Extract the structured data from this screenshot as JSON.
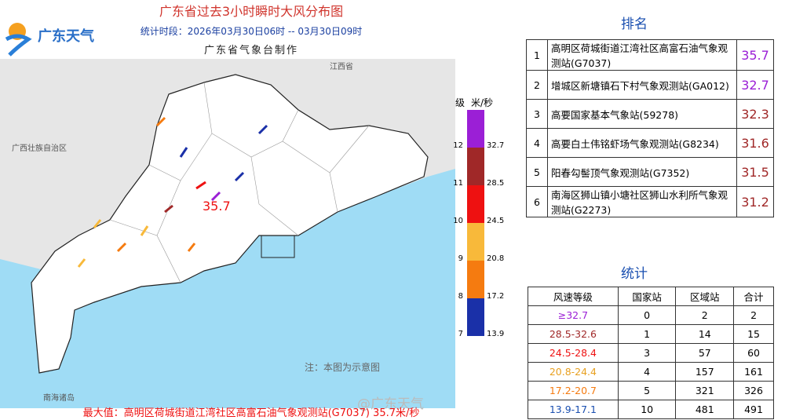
{
  "header": {
    "logo": "广东天气",
    "title": "广东省过去3小时瞬时大风分布图",
    "period": "统计时段：2026年03月30日06时 -- 03月30日09时",
    "maker": "广东省气象台制作"
  },
  "map": {
    "labels": [
      "江西省",
      "广西壮族自治区",
      "南海诸岛"
    ],
    "max_marker": "35.7",
    "note": "注：本图为示意图",
    "watermark": "@广东天气",
    "legend": {
      "level_header": "级",
      "unit_header": "米/秒",
      "levels": [
        {
          "level": "12",
          "speed": "32.7",
          "color": "#9b1fd6"
        },
        {
          "level": "11",
          "speed": "28.5",
          "color": "#a02828"
        },
        {
          "level": "10",
          "speed": "24.5",
          "color": "#ee1111"
        },
        {
          "level": "9",
          "speed": "20.8",
          "color": "#f8b93a"
        },
        {
          "level": "8",
          "speed": "17.2",
          "color": "#f57b10"
        },
        {
          "level": "7",
          "speed": "13.9",
          "color": "#1a30a8"
        }
      ]
    }
  },
  "footer": {
    "max_value": "最大值：高明区荷城街道江湾社区高富石油气象观测站(G7037) 35.7米/秒"
  },
  "ranking": {
    "title": "排名",
    "rows": [
      {
        "rank": 1,
        "station": "高明区荷城街道江湾社区高富石油气象观测站(G7037)",
        "value": 35.7,
        "color": "#9b1fd6"
      },
      {
        "rank": 2,
        "station": "增城区新塘镇石下村气象观测站(GA012)",
        "value": 32.7,
        "color": "#9b1fd6"
      },
      {
        "rank": 3,
        "station": "高要国家基本气象站(59278)",
        "value": 32.3,
        "color": "#a02828"
      },
      {
        "rank": 4,
        "station": "高要白土伟铭虾场气象观测站(G8234)",
        "value": 31.6,
        "color": "#a02828"
      },
      {
        "rank": 5,
        "station": "阳春勾髻顶气象观测站(G7352)",
        "value": 31.5,
        "color": "#a02828"
      },
      {
        "rank": 6,
        "station": "南海区狮山镇小塘社区狮山水利所气象观测站(G2273)",
        "value": 31.2,
        "color": "#a02828"
      }
    ]
  },
  "statistics": {
    "title": "统计",
    "header": [
      "风速等级",
      "国家站",
      "区域站",
      "合计"
    ],
    "rows": [
      {
        "range": "≥32.7",
        "national": 0,
        "regional": 2,
        "total": 2,
        "color": "#9b1fd6"
      },
      {
        "range": "28.5-32.6",
        "national": 1,
        "regional": 14,
        "total": 15,
        "color": "#a02828"
      },
      {
        "range": "24.5-28.4",
        "national": 3,
        "regional": 57,
        "total": 60,
        "color": "#ee1111"
      },
      {
        "range": "20.8-24.4",
        "national": 4,
        "regional": 157,
        "total": 161,
        "color": "#e8a020"
      },
      {
        "range": "17.2-20.7",
        "national": 5,
        "regional": 321,
        "total": 326,
        "color": "#f57b10"
      },
      {
        "range": "13.9-17.1",
        "national": 10,
        "regional": 481,
        "total": 491,
        "color": "#1a4fb0"
      }
    ]
  }
}
